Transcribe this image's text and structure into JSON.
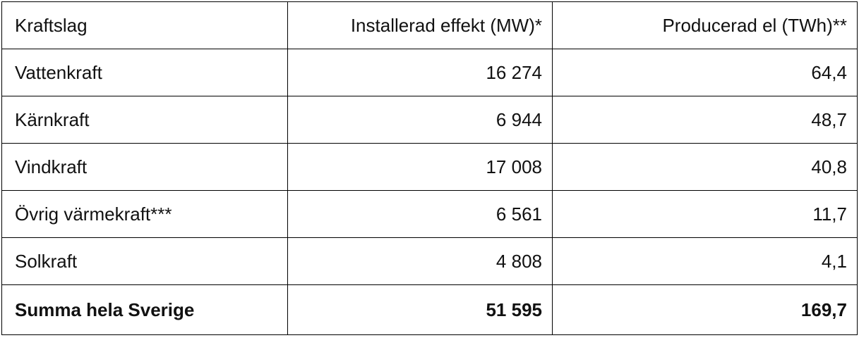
{
  "table": {
    "header": [
      "Kraftslag",
      "Installerad effekt (MW)*",
      "Producerad el (TWh)**"
    ],
    "rows": [
      [
        "Vattenkraft",
        "16 274",
        "64,4"
      ],
      [
        "Kärnkraft",
        "6 944",
        "48,7"
      ],
      [
        "Vindkraft",
        "17 008",
        "40,8"
      ],
      [
        "Övrig värmekraft***",
        "6 561",
        "11,7"
      ],
      [
        "Solkraft",
        "4 808",
        "4,1"
      ]
    ],
    "total": [
      "Summa hela Sverige",
      "51 595",
      "169,7"
    ]
  }
}
